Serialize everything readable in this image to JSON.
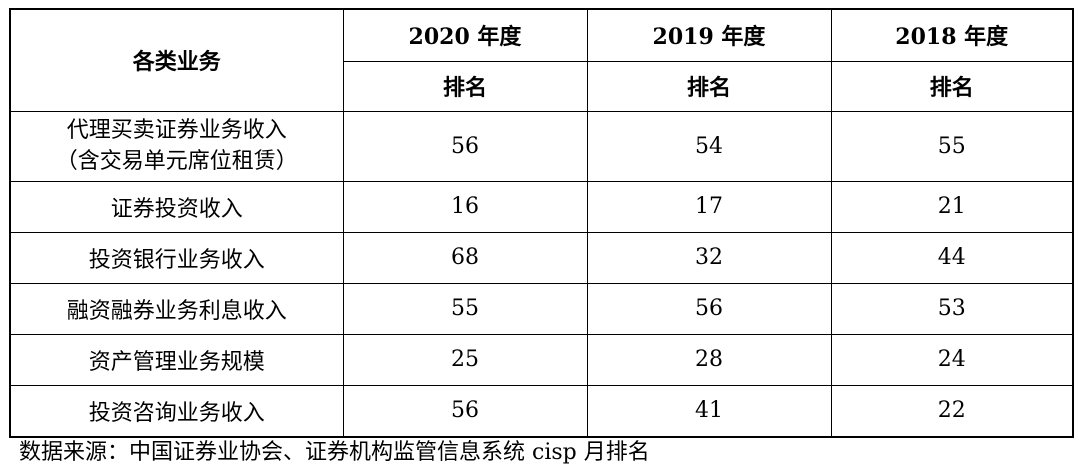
{
  "table": {
    "header": {
      "category_label": "各类业务",
      "years": [
        "2020 年度",
        "2019 年度",
        "2018 年度"
      ],
      "rank_label": "排名"
    },
    "rows": [
      {
        "category": [
          "代理买卖证券业务收入",
          "（含交易单元席位租赁）"
        ],
        "ranks": [
          "56",
          "54",
          "55"
        ]
      },
      {
        "category": [
          "证券投资收入"
        ],
        "ranks": [
          "16",
          "17",
          "21"
        ]
      },
      {
        "category": [
          "投资银行业务收入"
        ],
        "ranks": [
          "68",
          "32",
          "44"
        ]
      },
      {
        "category": [
          "融资融券业务利息收入"
        ],
        "ranks": [
          "55",
          "56",
          "53"
        ]
      },
      {
        "category": [
          "资产管理业务规模"
        ],
        "ranks": [
          "25",
          "28",
          "24"
        ]
      },
      {
        "category": [
          "投资咨询业务收入"
        ],
        "ranks": [
          "56",
          "41",
          "22"
        ]
      }
    ]
  },
  "source_note": "数据来源：中国证券业协会、证券机构监管信息系统 cisp 月排名"
}
